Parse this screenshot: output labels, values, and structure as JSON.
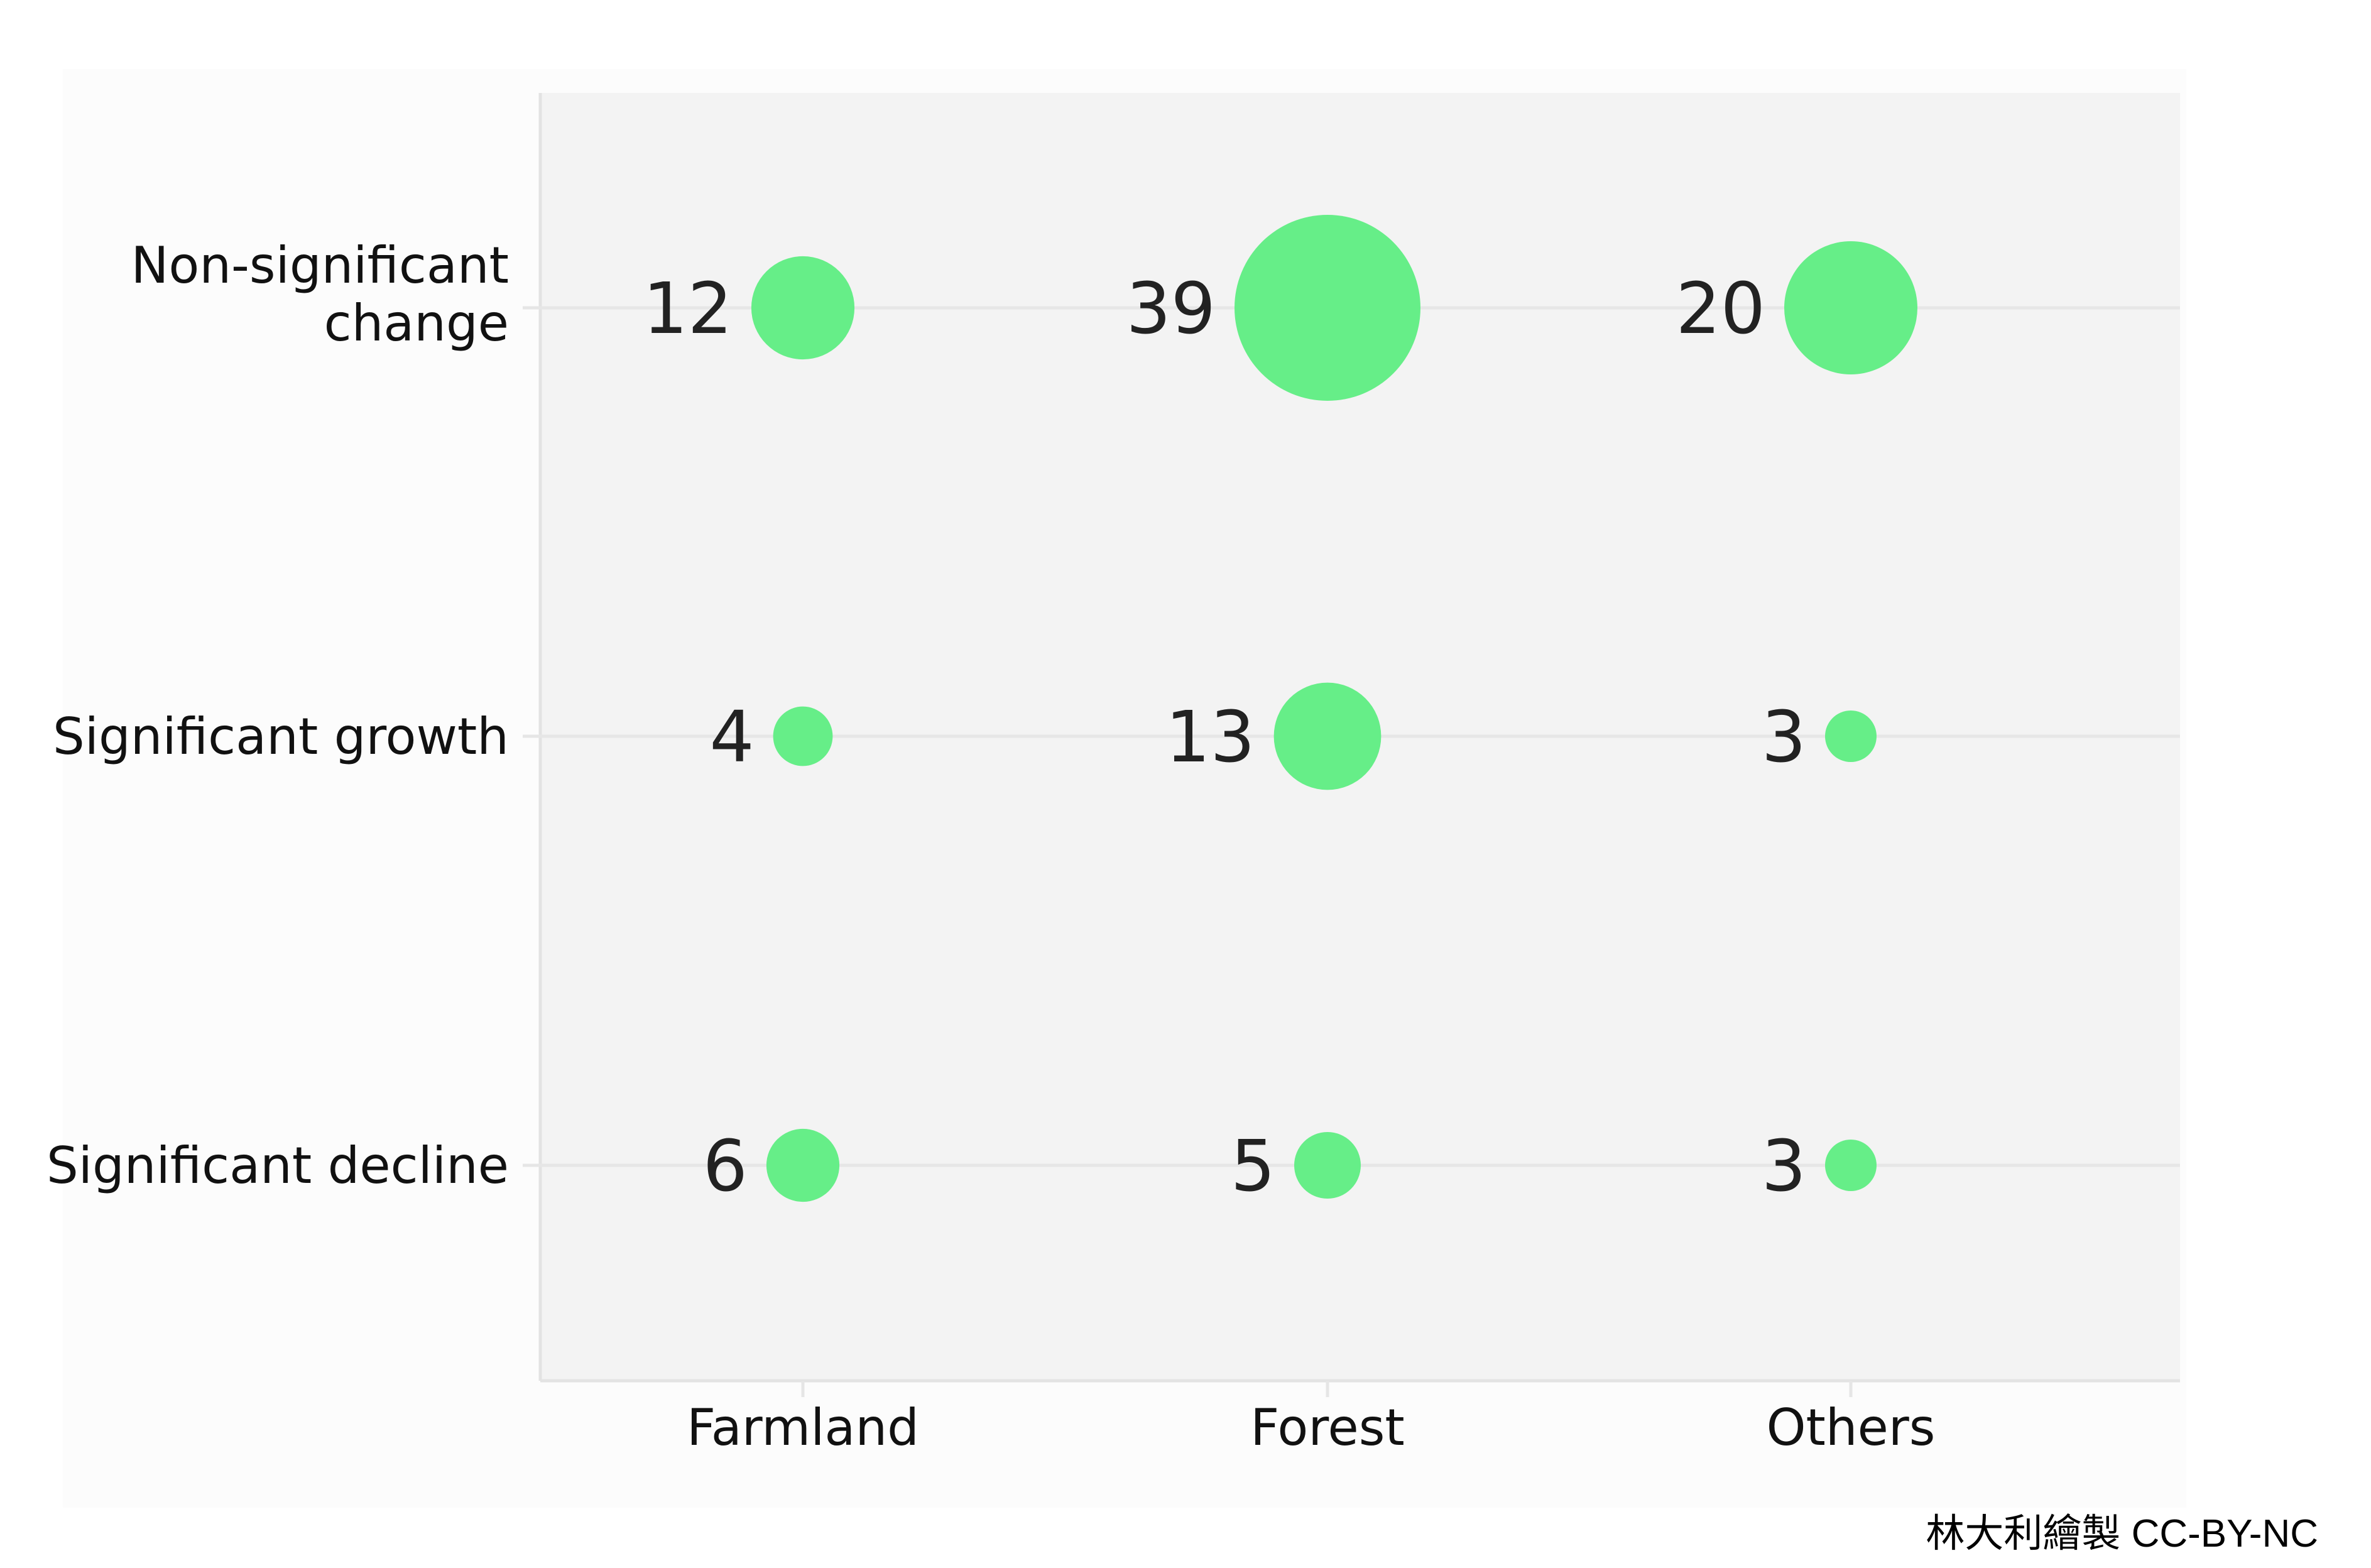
{
  "chart_data": {
    "type": "scatter",
    "subtype": "bubble",
    "x_categories": [
      "Farmland",
      "Forest",
      "Others"
    ],
    "y_categories": [
      "Non-significant change",
      "Significant growth",
      "Significant decline"
    ],
    "points": [
      {
        "x": "Farmland",
        "y": "Non-significant change",
        "value": 12
      },
      {
        "x": "Forest",
        "y": "Non-significant change",
        "value": 39
      },
      {
        "x": "Others",
        "y": "Non-significant change",
        "value": 20
      },
      {
        "x": "Farmland",
        "y": "Significant growth",
        "value": 4
      },
      {
        "x": "Forest",
        "y": "Significant growth",
        "value": 13
      },
      {
        "x": "Others",
        "y": "Significant growth",
        "value": 3
      },
      {
        "x": "Farmland",
        "y": "Significant decline",
        "value": 6
      },
      {
        "x": "Forest",
        "y": "Significant decline",
        "value": 5
      },
      {
        "x": "Others",
        "y": "Significant decline",
        "value": 3
      }
    ],
    "grid": true,
    "legend": "none",
    "colors": {
      "bubble": "#66ee88",
      "panel": "#f3f3f3",
      "grid": "#e6e6e6",
      "text": "#222222"
    }
  },
  "credit": "林大利繪製 CC-BY-NC"
}
